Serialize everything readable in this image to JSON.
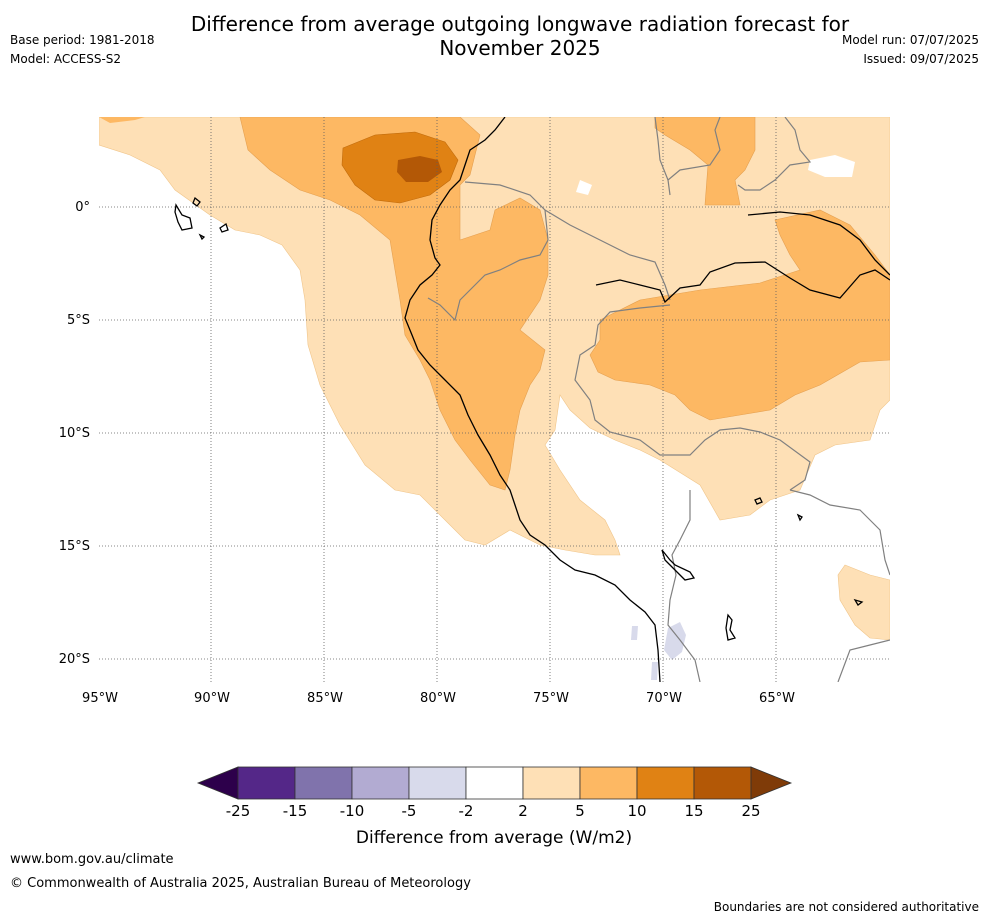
{
  "header": {
    "title_line1": "Difference from average outgoing longwave radiation forecast for",
    "title_line2": "November 2025",
    "base_period": "Base period: 1981-2018",
    "model": "Model: ACCESS-S2",
    "model_run": "Model run: 07/07/2025",
    "issued": "Issued: 09/07/2025"
  },
  "map": {
    "lat_labels": [
      "0°",
      "5°S",
      "10°S",
      "15°S",
      "20°S"
    ],
    "lon_labels": [
      "95°W",
      "90°W",
      "85°W",
      "80°W",
      "75°W",
      "70°W",
      "65°W"
    ],
    "colors": {
      "ocean_land_neutral": "#ffffff",
      "pos_2_5": "#fee0b6",
      "pos_5_10": "#fdb863",
      "pos_10_15": "#e08214",
      "pos_15_25": "#b35806",
      "neg_2_5": "#d8daeb",
      "coast": "#000000",
      "borders": "#808080"
    }
  },
  "legend": {
    "ticks": [
      "-25",
      "-15",
      "-10",
      "-5",
      "-2",
      "2",
      "5",
      "10",
      "15",
      "25"
    ],
    "colors": [
      "#2d004b",
      "#542788",
      "#8073ac",
      "#b2abd2",
      "#d8daeb",
      "#ffffff",
      "#fee0b6",
      "#fdb863",
      "#e08214",
      "#b35806",
      "#7f3b08"
    ],
    "label": "Difference from average (W/m2)"
  },
  "footer": {
    "url": "www.bom.gov.au/climate",
    "copyright": "© Commonwealth of Australia 2025, Australian Bureau of Meteorology",
    "disclaimer": "Boundaries are not considered authoritative"
  }
}
